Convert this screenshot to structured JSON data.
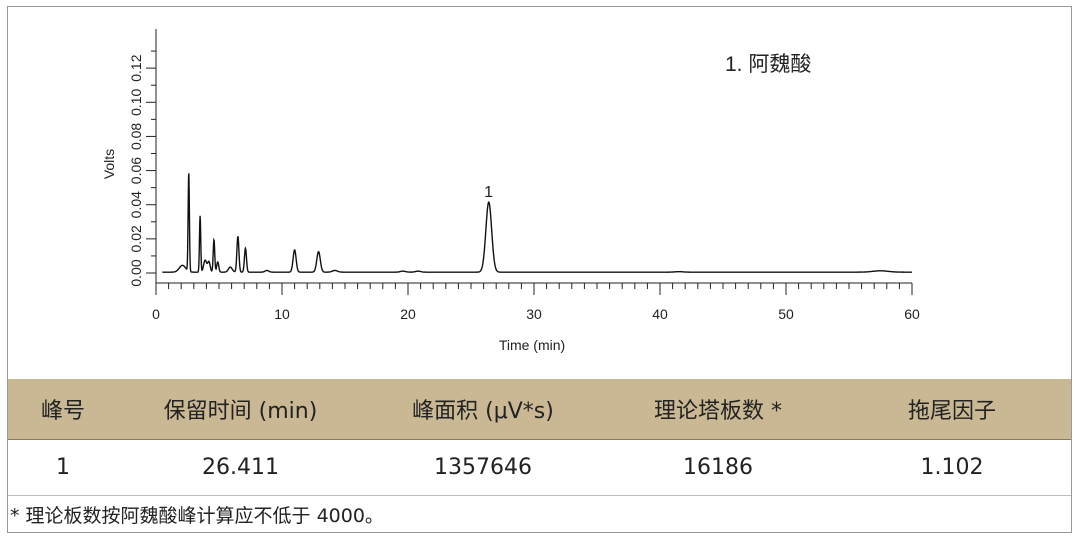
{
  "chart_data": {
    "type": "line",
    "xlabel": "Time (min)",
    "ylabel": "Volts",
    "xlim": [
      0,
      60
    ],
    "ylim": [
      0,
      0.14
    ],
    "x_ticks": [
      0,
      10,
      20,
      30,
      40,
      50,
      60
    ],
    "y_ticks": [
      0.0,
      0.02,
      0.04,
      0.06,
      0.08,
      0.1,
      0.12
    ],
    "y_tick_labels": [
      "0.00",
      "0.02",
      "0.04",
      "0.06",
      "0.08",
      "0.10",
      "0.12"
    ],
    "legend_text": "1. 阿魏酸",
    "peak_label": "1",
    "peak_label_x": 26.4,
    "baseline": 0.0005,
    "peaks": [
      {
        "x": 2.1,
        "h": 0.004,
        "w": 0.25
      },
      {
        "x": 2.6,
        "h": 0.058,
        "w": 0.05
      },
      {
        "x": 3.5,
        "h": 0.033,
        "w": 0.05
      },
      {
        "x": 3.9,
        "h": 0.007,
        "w": 0.12
      },
      {
        "x": 4.2,
        "h": 0.006,
        "w": 0.1
      },
      {
        "x": 4.6,
        "h": 0.019,
        "w": 0.06
      },
      {
        "x": 4.9,
        "h": 0.006,
        "w": 0.08
      },
      {
        "x": 5.9,
        "h": 0.003,
        "w": 0.15
      },
      {
        "x": 6.5,
        "h": 0.021,
        "w": 0.08
      },
      {
        "x": 7.1,
        "h": 0.014,
        "w": 0.08
      },
      {
        "x": 8.8,
        "h": 0.001,
        "w": 0.15
      },
      {
        "x": 11.0,
        "h": 0.013,
        "w": 0.12
      },
      {
        "x": 12.9,
        "h": 0.012,
        "w": 0.14
      },
      {
        "x": 14.2,
        "h": 0.001,
        "w": 0.2
      },
      {
        "x": 19.6,
        "h": 0.0006,
        "w": 0.2
      },
      {
        "x": 20.8,
        "h": 0.0006,
        "w": 0.2
      },
      {
        "x": 26.41,
        "h": 0.041,
        "w": 0.23
      },
      {
        "x": 41.5,
        "h": 0.0003,
        "w": 0.3
      },
      {
        "x": 57.5,
        "h": 0.0008,
        "w": 0.6
      }
    ]
  },
  "table": {
    "headers": [
      "峰号",
      "保留时间 (min)",
      "峰面积 (μV*s)",
      "理论塔板数 *",
      "拖尾因子"
    ],
    "rows": [
      [
        "1",
        "26.411",
        "1357646",
        "16186",
        "1.102"
      ]
    ],
    "colors": {
      "header_bg": "#c9b893"
    }
  },
  "note": "* 理论板数按阿魏酸峰计算应不低于 4000。"
}
